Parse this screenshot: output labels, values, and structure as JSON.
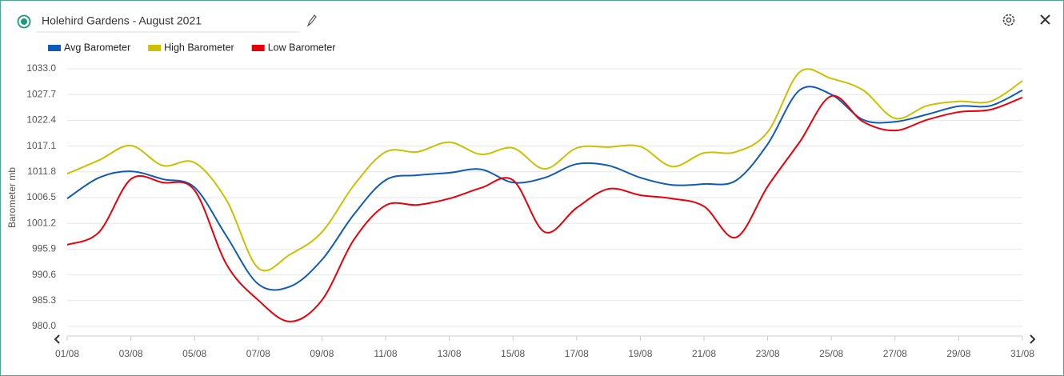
{
  "header": {
    "title": "Holehird Gardens - August 2021"
  },
  "chart_data": {
    "type": "line",
    "y_label": "Barometer mb",
    "categories": [
      "01/08",
      null,
      "03/08",
      null,
      "05/08",
      null,
      "07/08",
      null,
      "09/08",
      null,
      "11/08",
      null,
      "13/08",
      null,
      "15/08",
      null,
      "17/08",
      null,
      "19/08",
      null,
      "21/08",
      null,
      "23/08",
      null,
      "25/08",
      null,
      "27/08",
      null,
      "29/08",
      null,
      "31/08"
    ],
    "series": [
      {
        "name": "Avg Barometer",
        "color": "#0f5bb5",
        "values": [
          1006.3,
          1010.6,
          1011.9,
          1010.3,
          1008.6,
          998.6,
          988.7,
          988.2,
          993.7,
          1003.0,
          1010.1,
          1011.1,
          1011.6,
          1012.3,
          1009.6,
          1010.6,
          1013.4,
          1013.1,
          1010.6,
          1009.1,
          1009.3,
          1010.0,
          1017.5,
          1028.6,
          1027.7,
          1022.5,
          1022.1,
          1023.6,
          1025.3,
          1025.4,
          1028.6
        ]
      },
      {
        "name": "High Barometer",
        "color": "#c9c100",
        "values": [
          1011.4,
          1014.2,
          1017.2,
          1013.1,
          1013.7,
          1006.0,
          992.0,
          994.8,
          999.4,
          1009.0,
          1015.9,
          1015.9,
          1017.9,
          1015.4,
          1016.7,
          1012.4,
          1016.7,
          1016.9,
          1017.0,
          1012.9,
          1015.7,
          1015.9,
          1020.0,
          1032.3,
          1031.0,
          1028.6,
          1022.8,
          1025.4,
          1026.3,
          1026.3,
          1030.5
        ]
      },
      {
        "name": "Low Barometer",
        "color": "#e8000b",
        "values": [
          996.8,
          999.4,
          1010.3,
          1009.6,
          1008.0,
          992.8,
          985.4,
          981.0,
          985.4,
          997.8,
          1004.9,
          1005.0,
          1006.3,
          1008.5,
          1010.1,
          999.4,
          1004.4,
          1008.3,
          1007.0,
          1006.3,
          1004.7,
          998.3,
          1008.8,
          1017.9,
          1027.4,
          1022.1,
          1020.3,
          1022.5,
          1024.1,
          1024.6,
          1027.1
        ]
      }
    ],
    "ylim": [
      980.0,
      1033.0
    ],
    "yticks": [
      {
        "value": 980,
        "label": "980.0"
      },
      {
        "value": 985.3,
        "label": "985.3"
      },
      {
        "value": 990.6,
        "label": "990.6"
      },
      {
        "value": 995.9,
        "label": "995.9"
      },
      {
        "value": 1001.2,
        "label": "1001.2"
      },
      {
        "value": 1006.5,
        "label": "1006.5"
      },
      {
        "value": 1011.8,
        "label": "1011.8"
      },
      {
        "value": 1017.1,
        "label": "1017.1"
      },
      {
        "value": 1022.4,
        "label": "1022.4"
      },
      {
        "value": 1027.7,
        "label": "1027.7"
      },
      {
        "value": 1033,
        "label": "1033.0"
      }
    ],
    "grid": true
  }
}
